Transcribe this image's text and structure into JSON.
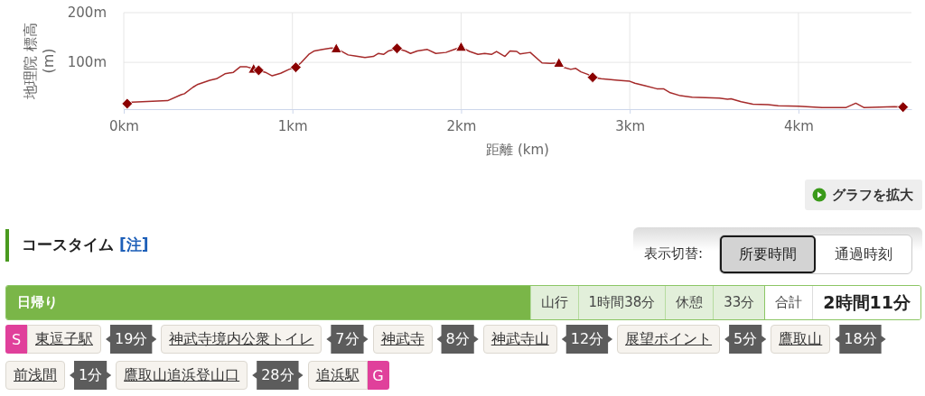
{
  "chart_data": [
    {
      "type": "line",
      "xlabel": "距離 (km)",
      "ylabel": "地理院 標高 (m)",
      "xlim": [
        0,
        4.67
      ],
      "xticks": [
        {
          "value": 0,
          "label": "0km"
        },
        {
          "value": 1,
          "label": "1km"
        },
        {
          "value": 2,
          "label": "2km"
        },
        {
          "value": 3,
          "label": "3km"
        },
        {
          "value": 4,
          "label": "4km"
        }
      ],
      "ylim": [
        6,
        200
      ],
      "yticks": [
        {
          "value": 100,
          "label": "100m"
        },
        {
          "value": 200,
          "label": "200m"
        }
      ],
      "grid": true,
      "series": [
        {
          "type": "line",
          "color": "#a52a2a",
          "marker": "none",
          "line_style": "solid",
          "x": [
            0.02,
            0.05,
            0.26,
            0.34,
            0.36,
            0.41,
            0.44,
            0.51,
            0.55,
            0.6,
            0.65,
            0.69,
            0.73,
            0.76,
            0.8,
            0.84,
            0.88,
            0.93,
            0.98,
            1.02,
            1.05,
            1.1,
            1.13,
            1.18,
            1.23,
            1.26,
            1.33,
            1.37,
            1.43,
            1.48,
            1.51,
            1.54,
            1.57,
            1.62,
            1.67,
            1.7,
            1.74,
            1.8,
            1.85,
            1.91,
            1.96,
            2.0,
            2.05,
            2.1,
            2.14,
            2.18,
            2.21,
            2.26,
            2.29,
            2.33,
            2.35,
            2.41,
            2.48,
            2.53,
            2.58,
            2.61,
            2.65,
            2.68,
            2.71,
            2.75,
            2.78,
            2.83,
            2.93,
            3.0,
            3.03,
            3.09,
            3.16,
            3.2,
            3.24,
            3.3,
            3.37,
            3.53,
            3.58,
            3.6,
            3.66,
            3.73,
            3.82,
            3.88,
            4.0,
            4.14,
            4.28,
            4.34,
            4.39,
            4.57,
            4.62
          ],
          "values": [
            17,
            20,
            23,
            35,
            37,
            50,
            56,
            64,
            67,
            77,
            80,
            91,
            91,
            88,
            84,
            80,
            73,
            78,
            86,
            90,
            99,
            117,
            123,
            126,
            129,
            128,
            115,
            113,
            110,
            112,
            118,
            116,
            123,
            128,
            123,
            118,
            123,
            126,
            118,
            120,
            126,
            131,
            122,
            116,
            118,
            116,
            122,
            112,
            123,
            122,
            117,
            120,
            99,
            98,
            99,
            90,
            86,
            88,
            81,
            76,
            70,
            67,
            64,
            62,
            58,
            53,
            47,
            47,
            39,
            33,
            30,
            28,
            26,
            27,
            21,
            16,
            15,
            13,
            12,
            9,
            9,
            18,
            9,
            11,
            10
          ]
        },
        {
          "type": "scatter",
          "color": "#8b0000",
          "marker": "triangle",
          "x": [
            0.77,
            1.26,
            2.0,
            2.58
          ],
          "values": [
            87,
            128,
            131,
            99
          ]
        },
        {
          "type": "scatter",
          "color": "#8b0000",
          "marker": "diamond",
          "x": [
            0.02,
            0.8,
            1.02,
            1.62,
            2.78,
            4.62
          ],
          "values": [
            17,
            84,
            90,
            128,
            70,
            10
          ]
        }
      ],
      "annotations": [
        "グラフを拡大"
      ]
    },
    {
      "type": "other",
      "title": "コースタイム",
      "annotations": [
        "[注]",
        "表示切替:",
        "所要時間",
        "通過時刻",
        "日帰り",
        "山行",
        "1時間38分",
        "休憩",
        "33分",
        "合計",
        "2時間11分",
        "S",
        "東逗子駅",
        "19分",
        "神武寺境内公衆トイレ",
        "7分",
        "神武寺",
        "8分",
        "神武寺山",
        "12分",
        "展望ポイント",
        "5分",
        "鷹取山",
        "18分",
        "前浅間",
        "1分",
        "鷹取山追浜登山口",
        "28分",
        "追浜駅",
        "G"
      ]
    }
  ]
}
